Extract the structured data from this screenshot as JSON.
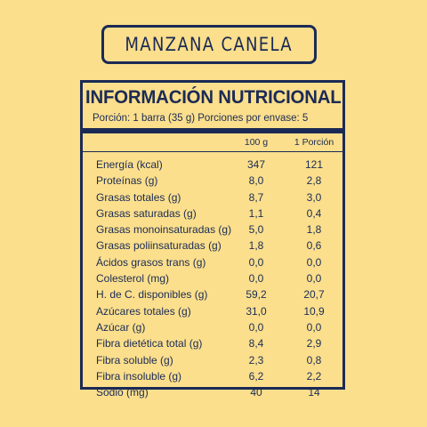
{
  "product": {
    "name": "MANZANA CANELA"
  },
  "panel": {
    "title": "INFORMACIÓN NUTRICIONAL",
    "serving": "Porción: 1 barra (35 g) Porciones por envase: 5",
    "columns": [
      "100 g",
      "1 Porción"
    ]
  },
  "rows": [
    {
      "label": "Energía (kcal)",
      "per_100g": "347",
      "per_portion": "121"
    },
    {
      "label": "Proteínas (g)",
      "per_100g": "8,0",
      "per_portion": "2,8"
    },
    {
      "label": "Grasas totales (g)",
      "per_100g": "8,7",
      "per_portion": "3,0"
    },
    {
      "label": "Grasas saturadas (g)",
      "per_100g": "1,1",
      "per_portion": "0,4"
    },
    {
      "label": "Grasas monoinsaturadas (g)",
      "per_100g": "5,0",
      "per_portion": "1,8"
    },
    {
      "label": "Grasas poliinsaturadas (g)",
      "per_100g": "1,8",
      "per_portion": "0,6"
    },
    {
      "label": "Ácidos grasos trans (g)",
      "per_100g": "0,0",
      "per_portion": "0,0"
    },
    {
      "label": "Colesterol (mg)",
      "per_100g": "0,0",
      "per_portion": "0,0"
    },
    {
      "label": "H. de C. disponibles (g)",
      "per_100g": "59,2",
      "per_portion": "20,7"
    },
    {
      "label": "Azúcares totales (g)",
      "per_100g": "31,0",
      "per_portion": "10,9"
    },
    {
      "label": "Azúcar (g)",
      "per_100g": "0,0",
      "per_portion": "0,0"
    },
    {
      "label": "Fibra dietética total (g)",
      "per_100g": "8,4",
      "per_portion": "2,9"
    },
    {
      "label": "Fibra soluble (g)",
      "per_100g": "2,3",
      "per_portion": "0,8"
    },
    {
      "label": "Fibra insoluble (g)",
      "per_100g": "6,2",
      "per_portion": "2,2"
    },
    {
      "label": "Sodio (mg)",
      "per_100g": "40",
      "per_portion": "14"
    }
  ],
  "colors": {
    "background": "#fbdf8c",
    "ink": "#1b2a55"
  }
}
